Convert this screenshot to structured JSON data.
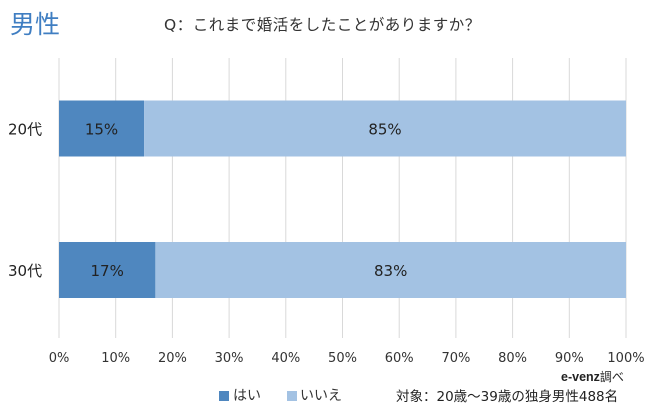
{
  "header": {
    "gender_label": "男性",
    "question": "Q：これまで婚活をしたことがありますか？"
  },
  "chart_data": {
    "type": "bar",
    "orientation": "horizontal",
    "stacked": true,
    "percent": true,
    "title": "Q：これまで婚活をしたことがありますか？",
    "categories": [
      "20代",
      "30代"
    ],
    "series": [
      {
        "name": "はい",
        "values": [
          15,
          17
        ],
        "labels": [
          "15%",
          "17%"
        ],
        "color": "#4f87bf"
      },
      {
        "name": "いいえ",
        "values": [
          85,
          83
        ],
        "labels": [
          "85%",
          "83%"
        ],
        "color": "#a3c2e3"
      }
    ],
    "xlim": [
      0,
      100
    ],
    "xticks": [
      "0%",
      "10%",
      "20%",
      "30%",
      "40%",
      "50%",
      "60%",
      "70%",
      "80%",
      "90%",
      "100%"
    ],
    "grid": true,
    "legend": "bottom-center"
  },
  "source": {
    "brand": "e-venz",
    "suffix": "調べ"
  },
  "footnote": "対象：20歳〜39歳の独身男性488名",
  "colors": {
    "gridline": "#d9d9d9",
    "accent": "#3f7ec2"
  }
}
